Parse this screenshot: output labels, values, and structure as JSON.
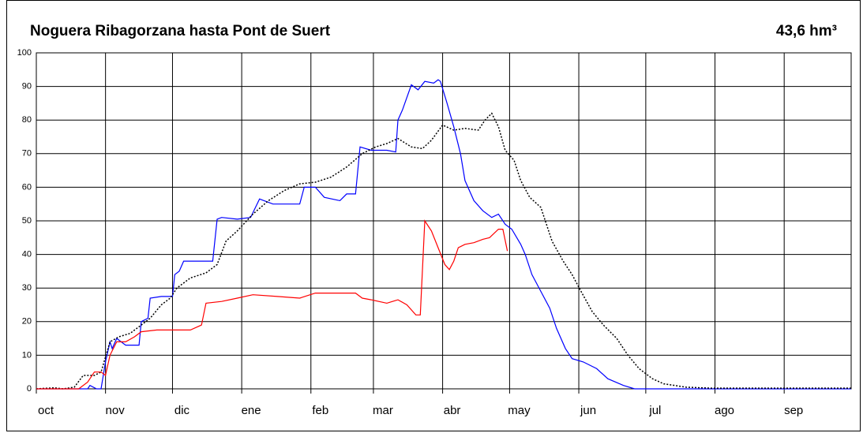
{
  "chart_data": {
    "type": "line",
    "title": "Noguera Ribagorzana hasta Pont de Suert",
    "volume": "43,6 hm³",
    "xlim": [
      0,
      365
    ],
    "xticks": [
      {
        "value": 0,
        "label": "oct"
      },
      {
        "value": 31,
        "label": "nov"
      },
      {
        "value": 61,
        "label": "dic"
      },
      {
        "value": 92,
        "label": "ene"
      },
      {
        "value": 123,
        "label": "feb"
      },
      {
        "value": 151,
        "label": "mar"
      },
      {
        "value": 182,
        "label": "abr"
      },
      {
        "value": 212,
        "label": "may"
      },
      {
        "value": 243,
        "label": "jun"
      },
      {
        "value": 273,
        "label": "jul"
      },
      {
        "value": 304,
        "label": "ago"
      },
      {
        "value": 335,
        "label": "sep"
      }
    ],
    "ylim": [
      0,
      100
    ],
    "yticks": [
      0,
      10,
      20,
      30,
      40,
      50,
      60,
      70,
      80,
      90,
      100
    ],
    "grid": true,
    "series": [
      {
        "color": "#0000ff",
        "dash": false,
        "x": [
          0,
          23,
          24,
          27,
          29,
          31,
          33,
          34,
          36,
          40,
          46,
          47,
          50,
          51,
          56,
          61,
          62,
          64,
          66,
          71,
          79,
          81,
          83,
          90,
          96,
          100,
          102,
          106,
          118,
          120,
          125,
          129,
          136,
          139,
          143,
          145,
          150,
          157,
          161,
          162,
          164,
          168,
          171,
          174,
          178,
          180,
          181,
          184,
          187,
          190,
          192,
          196,
          200,
          204,
          207,
          210,
          213,
          217,
          219,
          222,
          226,
          230,
          233,
          237,
          240,
          245,
          251,
          256,
          263,
          268,
          365
        ],
        "values": [
          0,
          0,
          1,
          0,
          0,
          8,
          14,
          12,
          15,
          13,
          13,
          20,
          21,
          27,
          27.5,
          27.5,
          34,
          35,
          38,
          38,
          38,
          50.5,
          51,
          50.5,
          51,
          56.5,
          56,
          55,
          55,
          60,
          60,
          57,
          56,
          58,
          58,
          72,
          71,
          71,
          70.5,
          80,
          83,
          90.5,
          89,
          91.5,
          91,
          92,
          91.5,
          85,
          78,
          70,
          62,
          56,
          53,
          51,
          52,
          49,
          47.5,
          43,
          40,
          34,
          29,
          24,
          18,
          12,
          9,
          8,
          6,
          3,
          1,
          0,
          0
        ]
      },
      {
        "color": "#000000",
        "dash": true,
        "x": [
          0,
          8,
          12,
          17,
          21,
          26,
          29,
          33,
          37,
          42,
          47,
          51,
          56,
          60,
          63,
          69,
          76,
          81,
          85,
          90,
          97,
          104,
          111,
          118,
          125,
          132,
          139,
          146,
          152,
          157,
          162,
          168,
          173,
          177,
          182,
          187,
          192,
          198,
          201,
          204,
          207,
          210,
          214,
          217,
          221,
          226,
          231,
          236,
          240,
          244,
          249,
          254,
          260,
          265,
          270,
          276,
          281,
          291,
          302,
          365
        ],
        "values": [
          0,
          0.3,
          0,
          0.5,
          4,
          4,
          5,
          14,
          15.5,
          16.5,
          19,
          21,
          25,
          27,
          30,
          33,
          34.5,
          37,
          44,
          47,
          52,
          56,
          59,
          61,
          61.5,
          63,
          66,
          70,
          72,
          73,
          74.5,
          72,
          71.5,
          74,
          78.5,
          77,
          77.5,
          77,
          80,
          82,
          78,
          71,
          68,
          62,
          57,
          54,
          44,
          38,
          34,
          29,
          23,
          19,
          15,
          10,
          6,
          3,
          1.5,
          0.5,
          0.2,
          0.2
        ]
      },
      {
        "color": "#ff0000",
        "dash": false,
        "x": [
          0,
          19,
          23,
          26,
          29,
          31,
          33,
          36,
          40,
          44,
          47,
          54,
          62,
          69,
          74,
          76,
          83,
          90,
          97,
          108,
          118,
          125,
          136,
          143,
          146,
          150,
          157,
          162,
          166,
          170,
          172,
          174,
          177,
          180,
          183,
          185,
          187,
          189,
          192,
          196,
          200,
          203,
          207,
          209,
          211
        ],
        "values": [
          0,
          0,
          2,
          5,
          5,
          4,
          10,
          14,
          14,
          15.5,
          17,
          17.5,
          17.5,
          17.5,
          19,
          25.5,
          26,
          27,
          28,
          27.5,
          27,
          28.5,
          28.5,
          28.5,
          27,
          26.5,
          25.5,
          26.5,
          25,
          22,
          22,
          50,
          47,
          42,
          37,
          35.5,
          38,
          42,
          43,
          43.5,
          44.5,
          45,
          47.5,
          47.5,
          41
        ]
      }
    ]
  }
}
